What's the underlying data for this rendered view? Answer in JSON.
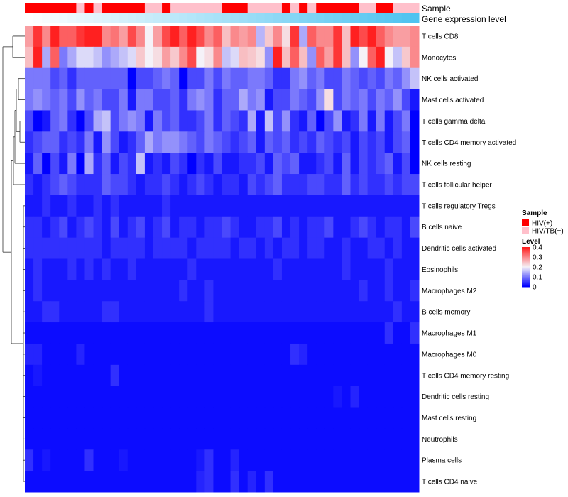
{
  "chart_data": {
    "type": "heatmap",
    "annotation_tracks": [
      "Sample",
      "Gene expression level"
    ],
    "rows": [
      "T cells CD8",
      "Monocytes",
      "NK cells activated",
      "Mast cells activated",
      "T cells gamma delta",
      "T cells CD4 memory activated",
      "NK cells resting",
      "T cells follicular helper",
      "T cells regulatory  Tregs",
      "B cells naive",
      "Dendritic cells activated",
      "Eosinophils",
      "Macrophages M2",
      "B cells memory",
      "Macrophages M1",
      "Macrophages M0",
      "T cells CD4 memory resting",
      "Dendritic cells resting",
      "Mast cells resting",
      "Neutrophils",
      "Plasma cells",
      "T cells CD4 naive"
    ],
    "n_samples": 46,
    "sample_groups": [
      "HIV(+)",
      "HIV(+)",
      "HIV(+)",
      "HIV(+)",
      "HIV(+)",
      "HIV(+)",
      "HIV/TB(+)",
      "HIV(+)",
      "HIV/TB(+)",
      "HIV(+)",
      "HIV(+)",
      "HIV(+)",
      "HIV(+)",
      "HIV(+)",
      "HIV/TB(+)",
      "HIV/TB(+)",
      "HIV(+)",
      "HIV/TB(+)",
      "HIV/TB(+)",
      "HIV/TB(+)",
      "HIV/TB(+)",
      "HIV/TB(+)",
      "HIV/TB(+)",
      "HIV(+)",
      "HIV(+)",
      "HIV(+)",
      "HIV/TB(+)",
      "HIV/TB(+)",
      "HIV/TB(+)",
      "HIV/TB(+)",
      "HIV(+)",
      "HIV/TB(+)",
      "HIV(+)",
      "HIV/TB(+)",
      "HIV(+)",
      "HIV(+)",
      "HIV(+)",
      "HIV(+)",
      "HIV(+)",
      "HIV/TB(+)",
      "HIV/TB(+)",
      "HIV(+)",
      "HIV(+)",
      "HIV/TB(+)",
      "HIV/TB(+)",
      "HIV/TB(+)"
    ],
    "expression_gradient": [
      0,
      1
    ],
    "values": [
      [
        0.28,
        0.38,
        0.3,
        0.4,
        0.34,
        0.34,
        0.38,
        0.4,
        0.4,
        0.3,
        0.32,
        0.28,
        0.36,
        0.3,
        0.2,
        0.28,
        0.36,
        0.4,
        0.34,
        0.4,
        0.36,
        0.3,
        0.34,
        0.25,
        0.3,
        0.28,
        0.3,
        0.15,
        0.24,
        0.3,
        0.22,
        0.38,
        0.14,
        0.34,
        0.3,
        0.3,
        0.38,
        0.25,
        0.4,
        0.36,
        0.4,
        0.34,
        0.3,
        0.28,
        0.28,
        0.3
      ],
      [
        0.25,
        0.4,
        0.14,
        0.34,
        0.1,
        0.14,
        0.18,
        0.18,
        0.16,
        0.12,
        0.14,
        0.16,
        0.18,
        0.24,
        0.2,
        0.22,
        0.28,
        0.24,
        0.3,
        0.36,
        0.2,
        0.22,
        0.3,
        0.16,
        0.18,
        0.25,
        0.24,
        0.22,
        0.12,
        0.4,
        0.25,
        0.34,
        0.25,
        0.12,
        0.34,
        0.28,
        0.38,
        0.25,
        0.12,
        0.2,
        0.34,
        0.4,
        0.2,
        0.16,
        0.24,
        0.3
      ],
      [
        0.1,
        0.1,
        0.1,
        0.06,
        0.08,
        0.04,
        0.08,
        0.08,
        0.08,
        0.08,
        0.08,
        0.08,
        0.0,
        0.06,
        0.06,
        0.08,
        0.1,
        0.08,
        0.0,
        0.06,
        0.06,
        0.1,
        0.06,
        0.1,
        0.08,
        0.08,
        0.1,
        0.1,
        0.08,
        0.04,
        0.04,
        0.1,
        0.12,
        0.08,
        0.1,
        0.06,
        0.06,
        0.1,
        0.08,
        0.06,
        0.08,
        0.06,
        0.1,
        0.08,
        0.12,
        0.16
      ],
      [
        0.1,
        0.12,
        0.1,
        0.08,
        0.1,
        0.06,
        0.12,
        0.08,
        0.1,
        0.06,
        0.06,
        0.1,
        0.02,
        0.1,
        0.1,
        0.06,
        0.06,
        0.08,
        0.04,
        0.1,
        0.12,
        0.1,
        0.04,
        0.08,
        0.08,
        0.14,
        0.1,
        0.12,
        0.02,
        0.06,
        0.06,
        0.1,
        0.08,
        0.06,
        0.12,
        0.22,
        0.06,
        0.1,
        0.08,
        0.1,
        0.06,
        0.1,
        0.08,
        0.12,
        0.06,
        0.02
      ],
      [
        0.06,
        0.0,
        0.02,
        0.08,
        0.1,
        0.04,
        0.0,
        0.06,
        0.14,
        0.16,
        0.06,
        0.1,
        0.12,
        0.1,
        0.02,
        0.1,
        0.06,
        0.08,
        0.04,
        0.04,
        0.06,
        0.1,
        0.04,
        0.08,
        0.06,
        0.04,
        0.14,
        0.02,
        0.16,
        0.06,
        0.12,
        0.04,
        0.02,
        0.08,
        0.0,
        0.06,
        0.12,
        0.02,
        0.04,
        0.1,
        0.02,
        0.1,
        0.02,
        0.06,
        0.1,
        0.0
      ],
      [
        0.04,
        0.06,
        0.08,
        0.08,
        0.04,
        0.06,
        0.04,
        0.1,
        0.02,
        0.12,
        0.06,
        0.02,
        0.04,
        0.08,
        0.14,
        0.1,
        0.12,
        0.12,
        0.1,
        0.08,
        0.06,
        0.1,
        0.08,
        0.06,
        0.04,
        0.06,
        0.08,
        0.02,
        0.08,
        0.06,
        0.08,
        0.04,
        0.06,
        0.04,
        0.08,
        0.06,
        0.04,
        0.06,
        0.02,
        0.06,
        0.04,
        0.06,
        0.02,
        0.06,
        0.08,
        0.0
      ],
      [
        0.02,
        0.08,
        0.0,
        0.06,
        0.02,
        0.1,
        0.0,
        0.14,
        0.04,
        0.08,
        0.02,
        0.06,
        0.04,
        0.16,
        0.02,
        0.04,
        0.02,
        0.06,
        0.04,
        0.0,
        0.04,
        0.02,
        0.06,
        0.02,
        0.02,
        0.04,
        0.04,
        0.06,
        0.02,
        0.08,
        0.06,
        0.08,
        0.02,
        0.02,
        0.04,
        0.06,
        0.02,
        0.08,
        0.02,
        0.06,
        0.04,
        0.06,
        0.08,
        0.02,
        0.06,
        0.0
      ],
      [
        0.04,
        0.02,
        0.04,
        0.06,
        0.08,
        0.06,
        0.04,
        0.04,
        0.04,
        0.08,
        0.06,
        0.06,
        0.04,
        0.02,
        0.04,
        0.04,
        0.06,
        0.04,
        0.02,
        0.04,
        0.06,
        0.04,
        0.02,
        0.04,
        0.04,
        0.02,
        0.06,
        0.04,
        0.06,
        0.08,
        0.04,
        0.04,
        0.04,
        0.06,
        0.06,
        0.04,
        0.04,
        0.08,
        0.04,
        0.06,
        0.04,
        0.04,
        0.06,
        0.04,
        0.06,
        0.06
      ],
      [
        0.02,
        0.02,
        0.04,
        0.02,
        0.02,
        0.04,
        0.02,
        0.02,
        0.04,
        0.02,
        0.04,
        0.02,
        0.02,
        0.02,
        0.02,
        0.02,
        0.04,
        0.02,
        0.02,
        0.02,
        0.02,
        0.02,
        0.02,
        0.02,
        0.02,
        0.02,
        0.02,
        0.02,
        0.02,
        0.02,
        0.02,
        0.02,
        0.02,
        0.02,
        0.02,
        0.02,
        0.02,
        0.02,
        0.02,
        0.02,
        0.02,
        0.02,
        0.02,
        0.02,
        0.02,
        0.02
      ],
      [
        0.04,
        0.04,
        0.02,
        0.04,
        0.06,
        0.02,
        0.04,
        0.06,
        0.04,
        0.02,
        0.06,
        0.02,
        0.04,
        0.06,
        0.02,
        0.04,
        0.06,
        0.02,
        0.04,
        0.04,
        0.02,
        0.04,
        0.04,
        0.06,
        0.04,
        0.02,
        0.02,
        0.04,
        0.04,
        0.06,
        0.02,
        0.04,
        0.02,
        0.04,
        0.04,
        0.06,
        0.02,
        0.02,
        0.04,
        0.06,
        0.04,
        0.02,
        0.04,
        0.04,
        0.02,
        0.06
      ],
      [
        0.04,
        0.04,
        0.04,
        0.04,
        0.04,
        0.04,
        0.04,
        0.04,
        0.04,
        0.02,
        0.04,
        0.04,
        0.04,
        0.04,
        0.02,
        0.04,
        0.04,
        0.04,
        0.04,
        0.02,
        0.04,
        0.04,
        0.04,
        0.04,
        0.02,
        0.04,
        0.04,
        0.02,
        0.04,
        0.02,
        0.04,
        0.04,
        0.02,
        0.04,
        0.04,
        0.02,
        0.02,
        0.04,
        0.02,
        0.02,
        0.04,
        0.04,
        0.02,
        0.04,
        0.02,
        0.02
      ],
      [
        0.02,
        0.04,
        0.02,
        0.02,
        0.02,
        0.04,
        0.02,
        0.04,
        0.02,
        0.04,
        0.02,
        0.02,
        0.04,
        0.02,
        0.02,
        0.02,
        0.02,
        0.02,
        0.02,
        0.04,
        0.02,
        0.02,
        0.02,
        0.02,
        0.02,
        0.02,
        0.02,
        0.02,
        0.02,
        0.04,
        0.02,
        0.02,
        0.02,
        0.02,
        0.02,
        0.02,
        0.02,
        0.04,
        0.02,
        0.02,
        0.02,
        0.02,
        0.04,
        0.02,
        0.02,
        0.02
      ],
      [
        0.02,
        0.04,
        0.02,
        0.02,
        0.02,
        0.02,
        0.02,
        0.02,
        0.02,
        0.02,
        0.02,
        0.02,
        0.02,
        0.02,
        0.02,
        0.02,
        0.02,
        0.02,
        0.04,
        0.02,
        0.02,
        0.04,
        0.02,
        0.02,
        0.02,
        0.02,
        0.02,
        0.02,
        0.02,
        0.02,
        0.02,
        0.02,
        0.02,
        0.02,
        0.02,
        0.02,
        0.02,
        0.02,
        0.02,
        0.04,
        0.02,
        0.02,
        0.04,
        0.02,
        0.02,
        0.04
      ],
      [
        0.02,
        0.02,
        0.04,
        0.04,
        0.02,
        0.02,
        0.02,
        0.02,
        0.02,
        0.04,
        0.04,
        0.02,
        0.02,
        0.02,
        0.02,
        0.02,
        0.02,
        0.02,
        0.02,
        0.02,
        0.02,
        0.04,
        0.02,
        0.02,
        0.02,
        0.02,
        0.02,
        0.02,
        0.02,
        0.02,
        0.02,
        0.02,
        0.02,
        0.02,
        0.02,
        0.02,
        0.02,
        0.02,
        0.02,
        0.02,
        0.02,
        0.02,
        0.02,
        0.04,
        0.02,
        0.02
      ],
      [
        0.01,
        0.01,
        0.01,
        0.01,
        0.01,
        0.01,
        0.01,
        0.01,
        0.01,
        0.01,
        0.01,
        0.01,
        0.01,
        0.01,
        0.01,
        0.01,
        0.01,
        0.01,
        0.01,
        0.01,
        0.01,
        0.01,
        0.01,
        0.01,
        0.01,
        0.01,
        0.01,
        0.01,
        0.01,
        0.01,
        0.01,
        0.01,
        0.01,
        0.01,
        0.01,
        0.01,
        0.01,
        0.01,
        0.01,
        0.01,
        0.01,
        0.01,
        0.04,
        0.01,
        0.01,
        0.04
      ],
      [
        0.03,
        0.03,
        0.01,
        0.01,
        0.01,
        0.01,
        0.03,
        0.01,
        0.01,
        0.01,
        0.01,
        0.01,
        0.01,
        0.01,
        0.01,
        0.01,
        0.01,
        0.01,
        0.01,
        0.01,
        0.01,
        0.01,
        0.01,
        0.01,
        0.01,
        0.01,
        0.01,
        0.01,
        0.01,
        0.01,
        0.01,
        0.04,
        0.03,
        0.01,
        0.01,
        0.01,
        0.01,
        0.01,
        0.01,
        0.01,
        0.01,
        0.01,
        0.01,
        0.01,
        0.01,
        0.01
      ],
      [
        0.01,
        0.02,
        0.01,
        0.01,
        0.01,
        0.01,
        0.01,
        0.01,
        0.01,
        0.01,
        0.04,
        0.01,
        0.01,
        0.01,
        0.01,
        0.01,
        0.01,
        0.01,
        0.01,
        0.01,
        0.01,
        0.01,
        0.01,
        0.01,
        0.01,
        0.01,
        0.01,
        0.01,
        0.01,
        0.01,
        0.01,
        0.01,
        0.01,
        0.01,
        0.01,
        0.01,
        0.01,
        0.01,
        0.01,
        0.01,
        0.01,
        0.01,
        0.01,
        0.01,
        0.01,
        0.01
      ],
      [
        0.01,
        0.01,
        0.01,
        0.01,
        0.01,
        0.01,
        0.01,
        0.01,
        0.01,
        0.01,
        0.01,
        0.01,
        0.01,
        0.01,
        0.01,
        0.01,
        0.01,
        0.01,
        0.01,
        0.01,
        0.01,
        0.01,
        0.01,
        0.01,
        0.01,
        0.01,
        0.01,
        0.01,
        0.01,
        0.01,
        0.01,
        0.01,
        0.01,
        0.01,
        0.01,
        0.01,
        0.02,
        0.01,
        0.03,
        0.01,
        0.01,
        0.01,
        0.01,
        0.01,
        0.01,
        0.01
      ],
      [
        0.01,
        0.01,
        0.01,
        0.01,
        0.01,
        0.01,
        0.01,
        0.01,
        0.01,
        0.01,
        0.01,
        0.01,
        0.01,
        0.01,
        0.01,
        0.01,
        0.01,
        0.01,
        0.01,
        0.01,
        0.01,
        0.01,
        0.01,
        0.01,
        0.01,
        0.01,
        0.01,
        0.01,
        0.01,
        0.01,
        0.01,
        0.01,
        0.01,
        0.01,
        0.01,
        0.01,
        0.01,
        0.01,
        0.01,
        0.01,
        0.01,
        0.01,
        0.01,
        0.01,
        0.01,
        0.01
      ],
      [
        0.01,
        0.01,
        0.01,
        0.01,
        0.01,
        0.01,
        0.01,
        0.01,
        0.01,
        0.01,
        0.01,
        0.01,
        0.01,
        0.01,
        0.01,
        0.01,
        0.01,
        0.01,
        0.01,
        0.01,
        0.01,
        0.01,
        0.01,
        0.01,
        0.01,
        0.01,
        0.01,
        0.01,
        0.01,
        0.01,
        0.01,
        0.01,
        0.01,
        0.01,
        0.01,
        0.01,
        0.01,
        0.01,
        0.01,
        0.01,
        0.01,
        0.01,
        0.01,
        0.01,
        0.01,
        0.01
      ],
      [
        0.04,
        0.01,
        0.02,
        0.01,
        0.01,
        0.01,
        0.01,
        0.04,
        0.01,
        0.01,
        0.01,
        0.02,
        0.01,
        0.01,
        0.01,
        0.01,
        0.01,
        0.01,
        0.01,
        0.01,
        0.02,
        0.04,
        0.01,
        0.01,
        0.03,
        0.01,
        0.01,
        0.01,
        0.01,
        0.01,
        0.01,
        0.01,
        0.01,
        0.01,
        0.01,
        0.01,
        0.01,
        0.01,
        0.01,
        0.01,
        0.01,
        0.01,
        0.01,
        0.01,
        0.01,
        0.01
      ],
      [
        0.01,
        0.01,
        0.01,
        0.01,
        0.01,
        0.01,
        0.01,
        0.01,
        0.01,
        0.01,
        0.01,
        0.01,
        0.01,
        0.01,
        0.01,
        0.01,
        0.01,
        0.01,
        0.01,
        0.01,
        0.03,
        0.04,
        0.01,
        0.01,
        0.04,
        0.01,
        0.03,
        0.01,
        0.04,
        0.01,
        0.01,
        0.01,
        0.01,
        0.01,
        0.01,
        0.01,
        0.01,
        0.01,
        0.01,
        0.01,
        0.01,
        0.01,
        0.01,
        0.01,
        0.01,
        0.01
      ]
    ],
    "legend": {
      "sample_title": "Sample",
      "sample_entries": [
        {
          "label": "HIV(+)",
          "color": "#ff0000"
        },
        {
          "label": "HIV/TB(+)",
          "color": "#ffc0cb"
        }
      ],
      "level_title": "Level",
      "level_ticks": [
        0,
        0.1,
        0.2,
        0.3,
        0.4
      ],
      "level_tick_labels": [
        "0",
        "0.1",
        "0.2",
        "0.3",
        "0.4"
      ],
      "level_range": [
        0,
        0.4
      ]
    },
    "colors": {
      "low": "#0000ff",
      "mid": "#f5f2f8",
      "high": "#ff2020",
      "gradient_start": "#ffffff",
      "gradient_end": "#4ec3f0",
      "dendrogram": "#333333"
    }
  }
}
